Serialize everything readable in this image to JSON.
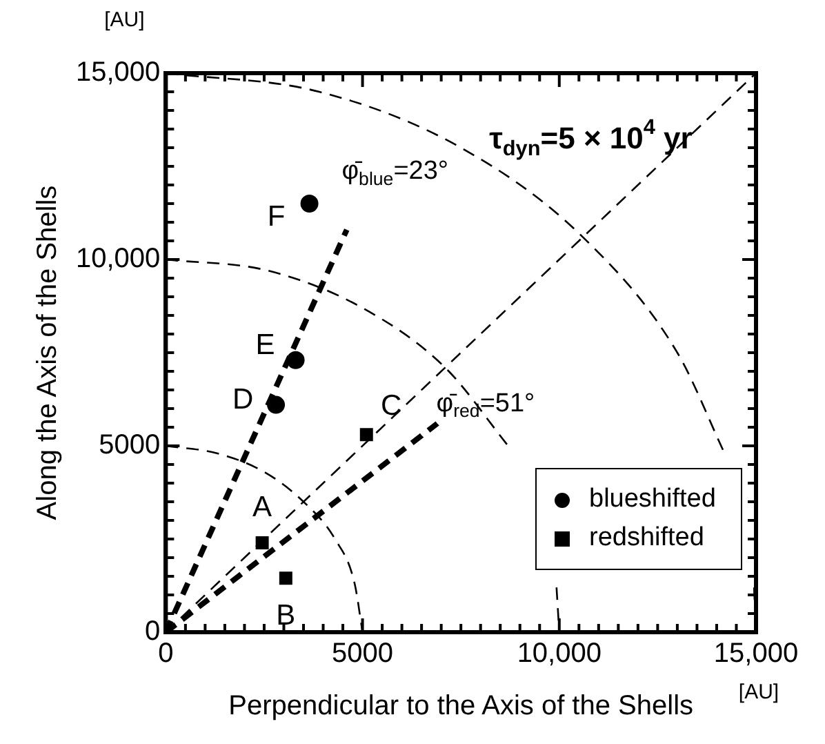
{
  "chart_data": {
    "type": "scatter",
    "xlabel": "Perpendicular to the Axis of the Shells",
    "ylabel": "Along the Axis of the Shells",
    "xlim": [
      0,
      15000
    ],
    "ylim": [
      0,
      15000
    ],
    "xticks": [
      0,
      {
        "value": 500,
        "label": null
      },
      {
        "value": 1000,
        "label": null
      },
      {
        "value": 1500,
        "label": null
      },
      {
        "value": 2000,
        "label": null
      },
      {
        "value": 2500,
        "label": null
      },
      {
        "value": 3000,
        "label": null
      },
      {
        "value": 3500,
        "label": null
      },
      {
        "value": 4000,
        "label": null
      },
      {
        "value": 4500,
        "label": null
      },
      5000,
      {
        "value": 5500,
        "label": null
      },
      {
        "value": 6000,
        "label": null
      },
      {
        "value": 6500,
        "label": null
      },
      {
        "value": 7000,
        "label": null
      },
      {
        "value": 7500,
        "label": null
      },
      {
        "value": 8000,
        "label": null
      },
      {
        "value": 8500,
        "label": null
      },
      {
        "value": 9000,
        "label": null
      },
      {
        "value": 9500,
        "label": null
      },
      {
        "value": 10000,
        "label": "10,000"
      },
      {
        "value": 10500,
        "label": null
      },
      {
        "value": 11000,
        "label": null
      },
      {
        "value": 11500,
        "label": null
      },
      {
        "value": 12000,
        "label": null
      },
      {
        "value": 12500,
        "label": null
      },
      {
        "value": 13000,
        "label": null
      },
      {
        "value": 13500,
        "label": null
      },
      {
        "value": 14000,
        "label": null
      },
      {
        "value": 14500,
        "label": null
      },
      {
        "value": 15000,
        "label": "15,000"
      }
    ],
    "yticks": [
      0,
      {
        "value": 500,
        "label": null
      },
      {
        "value": 1000,
        "label": null
      },
      {
        "value": 1500,
        "label": null
      },
      {
        "value": 2000,
        "label": null
      },
      {
        "value": 2500,
        "label": null
      },
      {
        "value": 3000,
        "label": null
      },
      {
        "value": 3500,
        "label": null
      },
      {
        "value": 4000,
        "label": null
      },
      {
        "value": 4500,
        "label": null
      },
      5000,
      {
        "value": 5500,
        "label": null
      },
      {
        "value": 6000,
        "label": null
      },
      {
        "value": 6500,
        "label": null
      },
      {
        "value": 7000,
        "label": null
      },
      {
        "value": 7500,
        "label": null
      },
      {
        "value": 8000,
        "label": null
      },
      {
        "value": 8500,
        "label": null
      },
      {
        "value": 9000,
        "label": null
      },
      {
        "value": 9500,
        "label": null
      },
      {
        "value": 10000,
        "label": "10,000"
      },
      {
        "value": 10500,
        "label": null
      },
      {
        "value": 11000,
        "label": null
      },
      {
        "value": 11500,
        "label": null
      },
      {
        "value": 12000,
        "label": null
      },
      {
        "value": 12500,
        "label": null
      },
      {
        "value": 13000,
        "label": null
      },
      {
        "value": 13500,
        "label": null
      },
      {
        "value": 14000,
        "label": null
      },
      {
        "value": 14500,
        "label": null
      },
      {
        "value": 15000,
        "label": "15,000"
      }
    ],
    "grid": false,
    "legend": "bottom right",
    "series": [
      {
        "name": "blueshifted",
        "marker": "circle",
        "color": "#000000",
        "x": [
          2800,
          3300,
          3650
        ],
        "values": [
          6100,
          7300,
          11500
        ]
      },
      {
        "name": "redshifted",
        "marker": "square",
        "color": "#000000",
        "x": [
          2450,
          3050,
          5100
        ],
        "values": [
          2400,
          1450,
          5300
        ]
      },
      {
        "type": "line",
        "line_style": "dashed",
        "marker": "none",
        "color": "#000000",
        "x": [
          0,
          4600
        ],
        "values": [
          0,
          10800
        ]
      },
      {
        "type": "line",
        "line_style": "dashed",
        "marker": "none",
        "color": "#000000",
        "x": [
          0,
          6900
        ],
        "values": [
          0,
          5600
        ]
      },
      {
        "type": "line",
        "line_style": "dashed",
        "marker": "none",
        "color": "#000000",
        "x": [
          0,
          15000
        ],
        "values": [
          0,
          15000
        ]
      },
      {
        "type": "line",
        "line_style": "dashed",
        "marker": "none",
        "color": "#000000",
        "x": [
          0,
          1300,
          2500,
          3500,
          4300,
          4800,
          5000
        ],
        "values": [
          5000,
          4800,
          4300,
          3500,
          2500,
          1300,
          0
        ]
      },
      {
        "type": "line",
        "line_style": "dashed",
        "marker": "none",
        "color": "#000000",
        "x": [
          0,
          2600,
          5000,
          7100,
          8700,
          9700,
          9930,
          10000
        ],
        "values": [
          10000,
          9700,
          8700,
          7100,
          5000,
          null,
          1200,
          0
        ]
      },
      {
        "type": "line",
        "line_style": "dashed",
        "marker": "none",
        "color": "#000000",
        "x": [
          0,
          3900,
          7500,
          10600,
          13000,
          14200,
          14500,
          14950,
          15000
        ],
        "values": [
          15000,
          14500,
          13000,
          10600,
          7500,
          4800,
          null,
          1200,
          0
        ]
      }
    ],
    "annotations": [
      "[AU]",
      "[AU]",
      "τ$_{dyn}$=5 × 10$^{4}$ yr",
      {
        "text": "A",
        "x": 2450,
        "y": 2400
      },
      {
        "text": "B",
        "x": 3050,
        "y": 1450
      },
      {
        "text": "C",
        "x": 5100,
        "y": 5300
      },
      {
        "text": "D",
        "x": 2800,
        "y": 6100
      },
      {
        "text": "E",
        "x": 3300,
        "y": 7300
      },
      {
        "text": "F",
        "x": 3650,
        "y": 11500
      },
      {
        "text": "φ̄$_{blue}$=23°",
        "x": 4600,
        "y": 10800
      },
      {
        "text": "φ̄$_{red}$=51°",
        "x": 6900,
        "y": 5600
      }
    ]
  }
}
